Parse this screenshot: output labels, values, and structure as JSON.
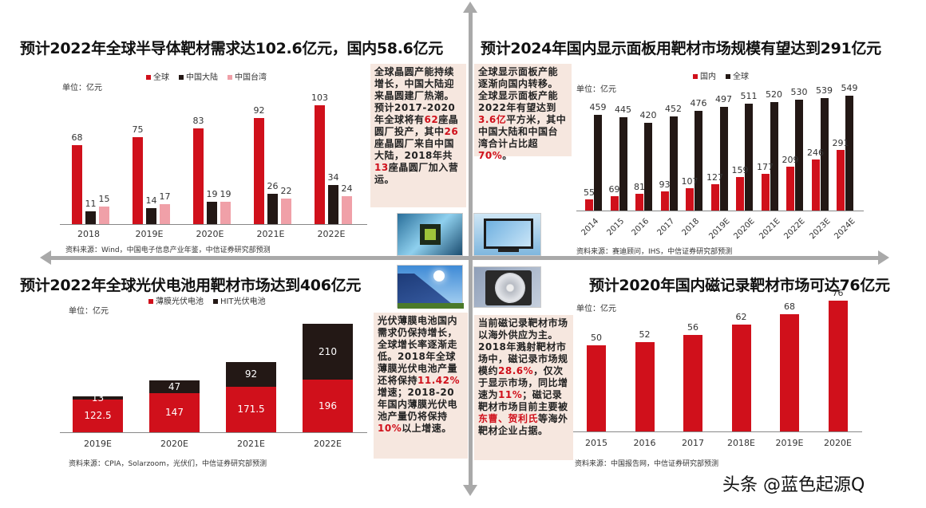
{
  "quadrants": {
    "top_left": {
      "title": "预计2022年全球半导体靶材需求达102.6亿元，国内58.6亿元",
      "unit": "单位：亿元",
      "legend": [
        "全球",
        "中国大陆",
        "中国台湾"
      ],
      "source": "资料来源：Wind，中国电子信息产业年鉴，中信证券研究部预测",
      "note_parts": [
        "全球晶圆产能持续增长，中国大陆迎来晶圆建厂热潮。预计2017-2020年全球将有",
        "62",
        "座晶圆厂投产，其中",
        "26",
        "座晶圆厂来自中国大陆，2018年共",
        "13",
        "座晶圆厂加入营运。"
      ]
    },
    "top_right": {
      "title": "预计2024年国内显示面板用靶材市场规模有望达到291亿元",
      "unit": "单位：亿元",
      "legend": [
        "国内",
        "全球"
      ],
      "source": "资料来源：赛迪顾问，IHS，中信证券研究部预测",
      "note_parts": [
        "全球显示面板产能逐渐向国内转移。全球显示面板产能2022年有望达到",
        "3.6亿",
        "平方米，其中中国大陆和中国台湾合计占比超",
        "70%",
        "。"
      ]
    },
    "bottom_left": {
      "title": "预计2022年全球光伏电池用靶材市场达到406亿元",
      "unit": "单位：亿元",
      "legend": [
        "薄膜光伏电池",
        "HIT光伏电池"
      ],
      "source": "资料来源：CPIA，Solarzoom，光伏们，中信证券研究部预测",
      "note_parts": [
        "光伏薄膜电池国内需求仍保持增长，全球增长率逐渐走低。2018年全球薄膜光伏电池产量还将保持",
        "11.42%",
        "增速；2018-20年国内薄膜光伏电池产量仍将保持",
        "10%",
        "以上增速。"
      ]
    },
    "bottom_right": {
      "title": "预计2020年国内磁记录靶材市场可达76亿元",
      "unit": "单位：亿元",
      "source": "资料来源：中国报告网，中信证券研究部预测",
      "note_parts": [
        "当前磁记录靶材市场以海外供应为主。2018年溅射靶材市场中，磁记录市场规模约",
        "28.6%",
        "，仅次于显示市场，同比增速为",
        "11%",
        "；磁记录靶材市场目前主要被",
        "东曹、贺利氏",
        "等海外靶材企业占据。"
      ]
    }
  },
  "images": [
    "semiconductor-chip-photo",
    "display-monitor-photo",
    "solar-panel-photo",
    "hard-disk-photo"
  ],
  "watermark": "头条 @蓝色起源Q",
  "colors": {
    "red": "#d0101b",
    "black": "#231815",
    "pink": "#f0a0a8",
    "arrow": "#a9a9a9",
    "note_bg": "#f6e7df"
  },
  "chart_data": [
    {
      "type": "bar",
      "title": "预计2022年全球半导体靶材需求达102.6亿元，国内58.6亿元",
      "ylabel": "单位：亿元",
      "categories": [
        "2018",
        "2019E",
        "2020E",
        "2021E",
        "2022E"
      ],
      "series": [
        {
          "name": "全球",
          "values": [
            68,
            75,
            83,
            92,
            103
          ]
        },
        {
          "name": "中国大陆",
          "values": [
            11,
            14,
            19,
            26,
            34
          ]
        },
        {
          "name": "中国台湾",
          "values": [
            15,
            17,
            19,
            22,
            24
          ]
        }
      ],
      "legend_position": "top"
    },
    {
      "type": "bar",
      "title": "预计2024年国内显示面板用靶材市场规模有望达到291亿元",
      "ylabel": "单位：亿元",
      "categories": [
        "2014",
        "2015",
        "2016",
        "2017",
        "2018",
        "2019E",
        "2020E",
        "2021E",
        "2022E",
        "2023E",
        "2024E"
      ],
      "series": [
        {
          "name": "国内",
          "values": [
            55,
            69,
            81,
            93,
            107,
            127,
            159,
            177,
            209,
            246,
            291
          ]
        },
        {
          "name": "全球",
          "values": [
            459,
            445,
            420,
            452,
            476,
            497,
            511,
            520,
            530,
            539,
            549
          ]
        }
      ],
      "legend_position": "top"
    },
    {
      "type": "bar",
      "stacked": true,
      "title": "预计2022年全球光伏电池用靶材市场达到406亿元",
      "ylabel": "单位：亿元",
      "categories": [
        "2019E",
        "2020E",
        "2021E",
        "2022E"
      ],
      "series": [
        {
          "name": "薄膜光伏电池",
          "values": [
            122.5,
            147,
            171.5,
            196
          ]
        },
        {
          "name": "HIT光伏电池",
          "values": [
            13,
            47,
            92,
            210
          ]
        }
      ],
      "legend_position": "top"
    },
    {
      "type": "bar",
      "title": "预计2020年国内磁记录靶材市场可达76亿元",
      "ylabel": "单位：亿元",
      "categories": [
        "2015",
        "2016",
        "2017",
        "2018E",
        "2019E",
        "2020E"
      ],
      "values": [
        50,
        52,
        56,
        62,
        68,
        76
      ]
    }
  ]
}
